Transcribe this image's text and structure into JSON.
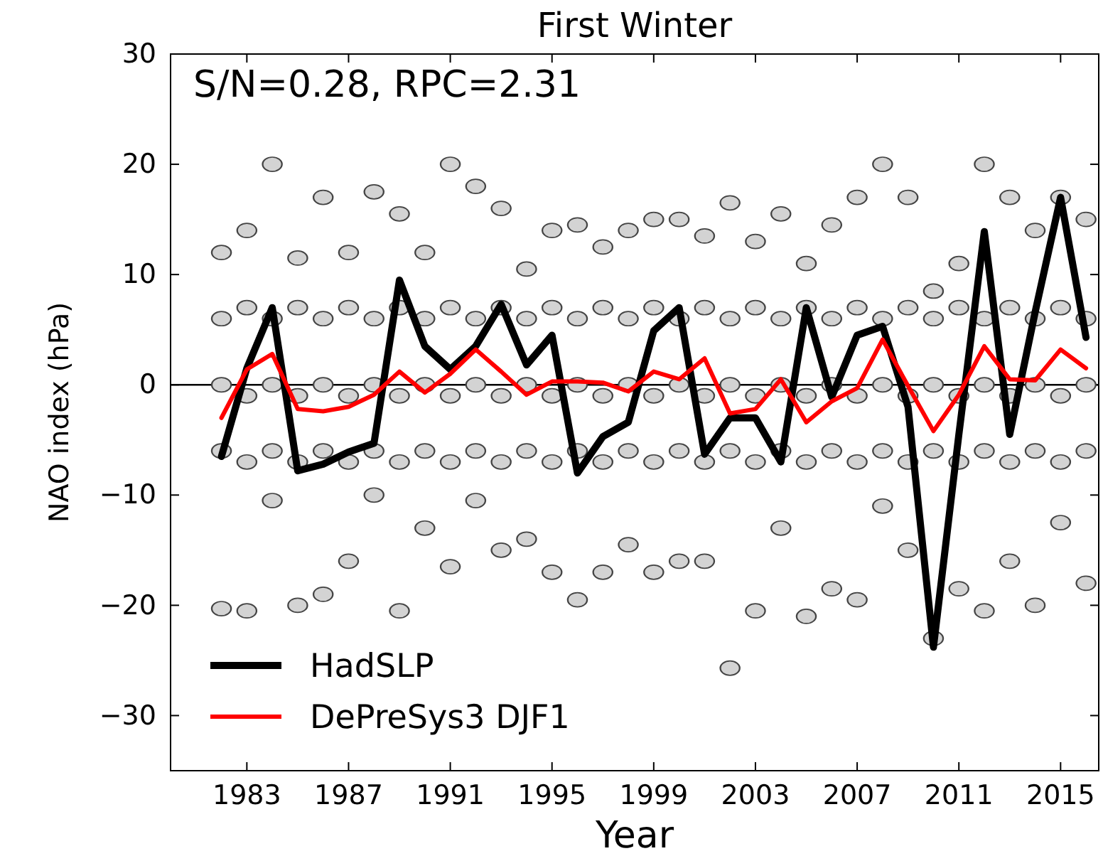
{
  "chart_data": {
    "type": "line",
    "title": "First Winter",
    "xlabel": "Year",
    "ylabel": "NAO index (hPa)",
    "annotations": [
      "S/N=0.28, RPC=2.31"
    ],
    "xlim": [
      1980,
      2016.5
    ],
    "xticks": [
      1983,
      1987,
      1991,
      1995,
      1999,
      2003,
      2007,
      2011,
      2015
    ],
    "ylim": [
      -35,
      30
    ],
    "yticks": [
      {
        "value": -30,
        "label": "−30"
      },
      {
        "value": -20,
        "label": "−20"
      },
      {
        "value": -10,
        "label": "−10"
      },
      0,
      10,
      20,
      30
    ],
    "ref_lines": [
      {
        "axis": "y",
        "value": 0,
        "color": "#000000"
      }
    ],
    "legend": "bottom left",
    "grid": false,
    "series": [
      {
        "type": "scatter",
        "color": "#d3d3d3",
        "marker": "circle",
        "x": [
          1982,
          1982,
          1982,
          1982,
          1982,
          1983,
          1983,
          1983,
          1983,
          1983,
          1984,
          1984,
          1984,
          1984,
          1984,
          1985,
          1985,
          1985,
          1985,
          1985,
          1986,
          1986,
          1986,
          1986,
          1986,
          1987,
          1987,
          1987,
          1987,
          1987,
          1988,
          1988,
          1988,
          1988,
          1988,
          1989,
          1989,
          1989,
          1989,
          1989,
          1990,
          1990,
          1990,
          1990,
          1990,
          1991,
          1991,
          1991,
          1991,
          1991,
          1992,
          1992,
          1992,
          1992,
          1992,
          1993,
          1993,
          1993,
          1993,
          1993,
          1994,
          1994,
          1994,
          1994,
          1994,
          1995,
          1995,
          1995,
          1995,
          1995,
          1996,
          1996,
          1996,
          1996,
          1996,
          1997,
          1997,
          1997,
          1997,
          1997,
          1998,
          1998,
          1998,
          1998,
          1998,
          1999,
          1999,
          1999,
          1999,
          1999,
          2000,
          2000,
          2000,
          2000,
          2000,
          2001,
          2001,
          2001,
          2001,
          2001,
          2002,
          2002,
          2002,
          2002,
          2002,
          2003,
          2003,
          2003,
          2003,
          2003,
          2004,
          2004,
          2004,
          2004,
          2004,
          2005,
          2005,
          2005,
          2005,
          2005,
          2006,
          2006,
          2006,
          2006,
          2006,
          2007,
          2007,
          2007,
          2007,
          2007,
          2008,
          2008,
          2008,
          2008,
          2008,
          2009,
          2009,
          2009,
          2009,
          2009,
          2010,
          2010,
          2010,
          2010,
          2010,
          2011,
          2011,
          2011,
          2011,
          2011,
          2012,
          2012,
          2012,
          2012,
          2012,
          2013,
          2013,
          2013,
          2013,
          2013,
          2014,
          2014,
          2014,
          2014,
          2014,
          2015,
          2015,
          2015,
          2015,
          2015,
          2016,
          2016,
          2016,
          2016,
          2016
        ],
        "values": [
          12,
          6,
          0,
          -6,
          -20.3,
          14,
          7,
          -1,
          -7,
          -20.5,
          20,
          6,
          0,
          -6,
          -10.5,
          11.5,
          7,
          -1,
          -7,
          -20,
          17,
          6,
          0,
          -6,
          -19,
          12,
          7,
          -1,
          -7,
          -16,
          17.5,
          6,
          0,
          -6,
          -10,
          15.5,
          7,
          -1,
          -7,
          -20.5,
          12,
          6,
          0,
          -6,
          -13,
          20,
          7,
          -1,
          -7,
          -16.5,
          18,
          6,
          0,
          -6,
          -10.5,
          16,
          7,
          -1,
          -7,
          -15,
          10.5,
          6,
          0,
          -6,
          -14,
          14,
          7,
          -1,
          -7,
          -17,
          14.5,
          6,
          0,
          -6,
          -19.5,
          12.5,
          7,
          -1,
          -7,
          -17,
          14,
          6,
          0,
          -6,
          -14.5,
          15,
          7,
          -1,
          -7,
          -17,
          15,
          6,
          0,
          -6,
          -16,
          13.5,
          7,
          -1,
          -7,
          -16,
          16.5,
          6,
          0,
          -6,
          -25.7,
          13,
          7,
          -1,
          -7,
          -20.5,
          15.5,
          6,
          0,
          -6,
          -13,
          11,
          7,
          -1,
          -7,
          -21,
          14.5,
          6,
          0,
          -6,
          -18.5,
          17,
          7,
          -1,
          -7,
          -19.5,
          20,
          6,
          0,
          -6,
          -11,
          17,
          7,
          -1,
          -7,
          -15,
          8.5,
          6,
          0,
          -6,
          -23,
          11,
          7,
          -1,
          -7,
          -18.5,
          20,
          6,
          0,
          -6,
          -20.5,
          17,
          7,
          -1,
          -7,
          -16,
          14,
          6,
          0,
          -6,
          -20,
          17,
          7,
          -1,
          -7,
          -12.5,
          15,
          6,
          0,
          -6,
          -18
        ]
      },
      {
        "name": "HadSLP",
        "color": "#000000",
        "x": [
          1982,
          1983,
          1984,
          1985,
          1986,
          1987,
          1988,
          1989,
          1990,
          1991,
          1992,
          1993,
          1994,
          1995,
          1996,
          1997,
          1998,
          1999,
          2000,
          2001,
          2002,
          2003,
          2004,
          2005,
          2006,
          2007,
          2008,
          2009,
          2010,
          2011,
          2012,
          2013,
          2014,
          2015,
          2016
        ],
        "values": [
          -6.5,
          1.5,
          7,
          -7.8,
          -7.2,
          -6.1,
          -5.3,
          9.5,
          3.5,
          1.4,
          3.5,
          7.3,
          1.8,
          4.5,
          -8,
          -4.7,
          -3.4,
          4.9,
          7,
          -6.3,
          -3,
          -3,
          -7,
          7,
          -1.1,
          4.5,
          5.3,
          -2,
          -23.8,
          -4.5,
          13.9,
          -4.5,
          6.6,
          17,
          4.3
        ]
      },
      {
        "name": "DePreSys3 DJF1",
        "color": "#ff0000",
        "x": [
          1982,
          1983,
          1984,
          1985,
          1986,
          1987,
          1988,
          1989,
          1990,
          1991,
          1992,
          1993,
          1994,
          1995,
          1996,
          1997,
          1998,
          1999,
          2000,
          2001,
          2002,
          2003,
          2004,
          2005,
          2006,
          2007,
          2008,
          2009,
          2010,
          2011,
          2012,
          2013,
          2014,
          2015,
          2016
        ],
        "values": [
          -3,
          1.4,
          2.8,
          -2.2,
          -2.4,
          -2,
          -0.9,
          1.2,
          -0.7,
          1,
          3.2,
          1.2,
          -0.9,
          0.3,
          0.3,
          0.2,
          -0.6,
          1.2,
          0.5,
          2.4,
          -2.6,
          -2.2,
          0.5,
          -3.4,
          -1.5,
          -0.3,
          4.1,
          -0.1,
          -4.2,
          -0.9,
          3.5,
          0.5,
          0.4,
          3.2,
          1.5
        ]
      }
    ]
  }
}
